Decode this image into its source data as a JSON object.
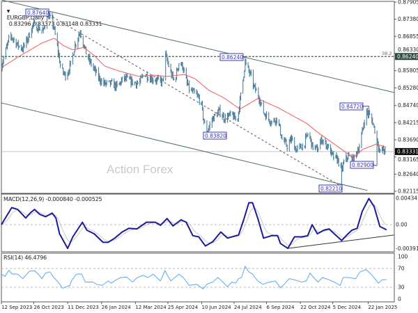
{
  "header": {
    "collapse_icon": "triangle-down-icon",
    "symbol": "EURGBP,Daily",
    "ohlc": "0.83296 0.83373 0.83148 0.83331"
  },
  "watermark": "Action Forex",
  "colors": {
    "bars": "#4f7f9b",
    "ma": "#f05a5a",
    "macd": "#1a1a9c",
    "signal": "#c8c8c8",
    "rsi": "#5aa8f0",
    "annotation": "#3a3ac0",
    "channel": "#4f6f6a"
  },
  "chart_data": [
    {
      "type": "ohlc",
      "panel": "price",
      "ylim": [
        0.82115,
        0.87905
      ],
      "y_ticks": [
        "0.87905",
        "0.87380",
        "0.86855",
        "0.86330",
        "0.85805",
        "0.85280",
        "0.84740",
        "0.84215",
        "0.83690",
        "0.83165",
        "0.82640",
        "0.82115"
      ],
      "x_ticks": [
        "12 Sep 2023",
        "26 Oct 2023",
        "11 Dec 2023",
        "26 Jan 2024",
        "12 Mar 2024",
        "25 Apr 2024",
        "10 Jun 2024",
        "24 Jul 2024",
        "6 Sep 2024",
        "22 Oct 2024",
        "5 Dec 2024",
        "22 Jan 2025"
      ],
      "last_price": "0.83331",
      "close_path": [
        [
          "2023-09-12",
          0.8595
        ],
        [
          "2023-09-24",
          0.869
        ],
        [
          "2023-10-04",
          0.8659
        ],
        [
          "2023-10-11",
          0.8648
        ],
        [
          "2023-10-18",
          0.868
        ],
        [
          "2023-10-25",
          0.8722
        ],
        [
          "2023-11-01",
          0.8712
        ],
        [
          "2023-11-08",
          0.8701
        ],
        [
          "2023-11-13",
          0.8754
        ],
        [
          "2023-11-20",
          0.8733
        ],
        [
          "2023-11-25",
          0.868
        ],
        [
          "2023-12-02",
          0.8584
        ],
        [
          "2023-12-09",
          0.8563
        ],
        [
          "2023-12-16",
          0.8605
        ],
        [
          "2023-12-21",
          0.8659
        ],
        [
          "2023-12-28",
          0.8701
        ],
        [
          "2024-01-02",
          0.8659
        ],
        [
          "2024-01-06",
          0.8627
        ],
        [
          "2024-01-11",
          0.8605
        ],
        [
          "2024-01-21",
          0.8563
        ],
        [
          "2024-01-28",
          0.8541
        ],
        [
          "2024-02-08",
          0.8541
        ],
        [
          "2024-02-16",
          0.8531
        ],
        [
          "2024-02-25",
          0.8558
        ],
        [
          "2024-03-08",
          0.8546
        ],
        [
          "2024-03-17",
          0.8541
        ],
        [
          "2024-03-24",
          0.8573
        ],
        [
          "2024-03-31",
          0.8558
        ],
        [
          "2024-04-10",
          0.8552
        ],
        [
          "2024-04-18",
          0.8546
        ],
        [
          "2024-04-22",
          0.8627
        ],
        [
          "2024-04-29",
          0.8573
        ],
        [
          "2024-05-04",
          0.8546
        ],
        [
          "2024-05-10",
          0.8605
        ],
        [
          "2024-05-15",
          0.8595
        ],
        [
          "2024-05-21",
          0.8541
        ],
        [
          "2024-05-25",
          0.852
        ],
        [
          "2024-06-01",
          0.851
        ],
        [
          "2024-06-09",
          0.8488
        ],
        [
          "2024-06-13",
          0.8424
        ],
        [
          "2024-06-17",
          0.8392
        ],
        [
          "2024-06-25",
          0.8435
        ],
        [
          "2024-07-04",
          0.8456
        ],
        [
          "2024-07-11",
          0.8435
        ],
        [
          "2024-07-21",
          0.8446
        ],
        [
          "2024-07-28",
          0.8424
        ],
        [
          "2024-08-03",
          0.852
        ],
        [
          "2024-08-08",
          0.8605
        ],
        [
          "2024-08-16",
          0.8563
        ],
        [
          "2024-08-20",
          0.8531
        ],
        [
          "2024-08-27",
          0.8499
        ],
        [
          "2024-09-01",
          0.8456
        ],
        [
          "2024-09-08",
          0.8435
        ],
        [
          "2024-09-13",
          0.8424
        ],
        [
          "2024-09-21",
          0.8435
        ],
        [
          "2024-09-27",
          0.8371
        ],
        [
          "2024-10-04",
          0.835
        ],
        [
          "2024-10-10",
          0.8371
        ],
        [
          "2024-10-16",
          0.8339
        ],
        [
          "2024-10-26",
          0.835
        ],
        [
          "2024-11-02",
          0.8392
        ],
        [
          "2024-11-07",
          0.835
        ],
        [
          "2024-11-14",
          0.8339
        ],
        [
          "2024-11-20",
          0.8371
        ],
        [
          "2024-11-28",
          0.835
        ],
        [
          "2024-12-05",
          0.8318
        ],
        [
          "2024-12-12",
          0.8307
        ],
        [
          "2024-12-17",
          0.8275
        ],
        [
          "2024-12-21",
          0.8307
        ],
        [
          "2024-12-26",
          0.8318
        ],
        [
          "2025-01-02",
          0.8307
        ],
        [
          "2025-01-10",
          0.835
        ],
        [
          "2025-01-14",
          0.8392
        ],
        [
          "2025-01-19",
          0.8456
        ],
        [
          "2025-01-23",
          0.8446
        ],
        [
          "2025-01-28",
          0.8424
        ],
        [
          "2025-02-02",
          0.8382
        ],
        [
          "2025-02-07",
          0.8329
        ],
        [
          "2025-02-11",
          0.8339
        ],
        [
          "2025-02-16",
          0.8333
        ]
      ],
      "moving_average": [
        [
          "2023-09-12",
          0.859
        ],
        [
          "2023-10-08",
          0.8627
        ],
        [
          "2023-11-06",
          0.8665
        ],
        [
          "2023-11-23",
          0.868
        ],
        [
          "2023-12-04",
          0.8659
        ],
        [
          "2023-12-18",
          0.8644
        ],
        [
          "2024-01-02",
          0.8652
        ],
        [
          "2024-01-16",
          0.8627
        ],
        [
          "2024-01-30",
          0.8595
        ],
        [
          "2024-02-18",
          0.858
        ],
        [
          "2024-03-17",
          0.8563
        ],
        [
          "2024-04-05",
          0.8567
        ],
        [
          "2024-04-24",
          0.8563
        ],
        [
          "2024-05-18",
          0.8569
        ],
        [
          "2024-06-01",
          0.8556
        ],
        [
          "2024-06-20",
          0.852
        ],
        [
          "2024-07-09",
          0.8499
        ],
        [
          "2024-08-01",
          0.8463
        ],
        [
          "2024-08-25",
          0.8495
        ],
        [
          "2024-09-22",
          0.8467
        ],
        [
          "2024-10-30",
          0.842
        ],
        [
          "2024-11-18",
          0.8386
        ],
        [
          "2024-12-07",
          0.8356
        ],
        [
          "2025-01-02",
          0.8314
        ],
        [
          "2025-01-14",
          0.8339
        ],
        [
          "2025-02-02",
          0.8356
        ],
        [
          "2025-02-16",
          0.8346
        ]
      ],
      "annotations": [
        {
          "text": "0.87640",
          "date": "2023-11-13",
          "price": 0.8764,
          "kind": "high"
        },
        {
          "text": "0.86240",
          "date": "2024-08-08",
          "price": 0.8624,
          "kind": "high"
        },
        {
          "text": "0.83820",
          "date": "2024-06-17",
          "price": 0.8382,
          "kind": "low"
        },
        {
          "text": "0.82210",
          "date": "2024-12-17",
          "price": 0.8221,
          "kind": "low"
        },
        {
          "text": "0.84720",
          "date": "2025-01-23",
          "price": 0.8472,
          "kind": "high"
        },
        {
          "text": "0.82900",
          "date": "2025-02-03",
          "price": 0.829,
          "kind": "low"
        }
      ],
      "fib_level": {
        "label": "38.2",
        "price": "0.86240"
      },
      "trendlines": [
        {
          "style": "solid",
          "from": [
            "2023-09-12",
            0.8797
          ],
          "to": [
            "2025-02-26",
            0.8514
          ]
        },
        {
          "style": "solid",
          "from": [
            "2023-09-12",
            0.8482
          ],
          "to": [
            "2025-01-21",
            0.8214
          ]
        },
        {
          "style": "dashed",
          "from": [
            "2023-11-01",
            0.8771
          ],
          "to": [
            "2024-12-17",
            0.8226
          ]
        }
      ]
    },
    {
      "type": "line",
      "panel": "macd",
      "title": "MACD(12,26,9) -0.000840 -0.000525",
      "ylim": [
        -0.003916,
        0.004341
      ],
      "y_ticks": [
        "0.004341",
        "0.00",
        "-0.003916"
      ],
      "macd": [
        [
          "2023-09-12",
          0.0
        ],
        [
          "2023-09-26",
          0.0028
        ],
        [
          "2023-10-04",
          0.0025
        ],
        [
          "2023-10-15",
          0.0011
        ],
        [
          "2023-10-21",
          0.0019
        ],
        [
          "2023-10-27",
          0.0025
        ],
        [
          "2023-11-03",
          0.0017
        ],
        [
          "2023-11-11",
          0.0013
        ],
        [
          "2023-11-20",
          0.0019
        ],
        [
          "2023-11-25",
          0.0011
        ],
        [
          "2023-11-30",
          -0.0015
        ],
        [
          "2023-12-11",
          -0.0039
        ],
        [
          "2023-12-18",
          -0.002
        ],
        [
          "2023-12-31",
          0.0004
        ],
        [
          "2024-01-06",
          -0.0009
        ],
        [
          "2024-01-16",
          -0.0015
        ],
        [
          "2024-01-28",
          -0.0029
        ],
        [
          "2024-02-04",
          -0.0029
        ],
        [
          "2024-02-13",
          -0.0022
        ],
        [
          "2024-02-23",
          -0.0012
        ],
        [
          "2024-03-03",
          -0.0006
        ],
        [
          "2024-03-14",
          -0.0007
        ],
        [
          "2024-03-27",
          0.0004
        ],
        [
          "2024-04-08",
          0.0004
        ],
        [
          "2024-04-15",
          -0.0001
        ],
        [
          "2024-04-24",
          0.001
        ],
        [
          "2024-05-02",
          -0.0002
        ],
        [
          "2024-05-13",
          0.0008
        ],
        [
          "2024-05-20",
          0.0004
        ],
        [
          "2024-05-29",
          -0.0018
        ],
        [
          "2024-06-06",
          -0.002
        ],
        [
          "2024-06-15",
          -0.0035
        ],
        [
          "2024-06-25",
          -0.0028
        ],
        [
          "2024-07-06",
          -0.0012
        ],
        [
          "2024-07-15",
          -0.0022
        ],
        [
          "2024-07-30",
          -0.0017
        ],
        [
          "2024-08-06",
          0.0008
        ],
        [
          "2024-08-13",
          0.0036
        ],
        [
          "2024-08-18",
          0.0036
        ],
        [
          "2024-08-25",
          0.0011
        ],
        [
          "2024-09-02",
          -0.0022
        ],
        [
          "2024-09-13",
          -0.0018
        ],
        [
          "2024-09-21",
          -0.0018
        ],
        [
          "2024-09-25",
          -0.0031
        ],
        [
          "2024-10-05",
          -0.0039
        ],
        [
          "2024-10-14",
          -0.002
        ],
        [
          "2024-10-24",
          -0.002
        ],
        [
          "2024-11-01",
          -0.0018
        ],
        [
          "2024-11-07",
          0.0
        ],
        [
          "2024-11-14",
          -0.0015
        ],
        [
          "2024-11-23",
          -0.0009
        ],
        [
          "2024-11-30",
          -0.0007
        ],
        [
          "2024-12-07",
          -0.0015
        ],
        [
          "2024-12-17",
          -0.0026
        ],
        [
          "2024-12-24",
          -0.0017
        ],
        [
          "2024-12-31",
          -0.0009
        ],
        [
          "2025-01-07",
          -0.0006
        ],
        [
          "2025-01-14",
          0.0022
        ],
        [
          "2025-01-23",
          0.0043
        ],
        [
          "2025-01-30",
          0.003
        ],
        [
          "2025-02-07",
          -0.0003
        ],
        [
          "2025-02-16",
          -0.00084
        ]
      ],
      "trendline": {
        "from": [
          "2024-10-05",
          -0.0039
        ],
        "to": [
          "2025-02-26",
          -0.0017
        ]
      }
    },
    {
      "type": "line",
      "panel": "rsi",
      "title": "RSI(14) 46.4796",
      "ylim": [
        0,
        100
      ],
      "y_ticks": [
        "100",
        "70",
        "30",
        "0"
      ],
      "levels": [
        70,
        30
      ],
      "rsi": [
        [
          "2023-09-12",
          58.0
        ],
        [
          "2023-09-17",
          53.1
        ],
        [
          "2023-09-22",
          66.2
        ],
        [
          "2023-09-27",
          58.0
        ],
        [
          "2023-10-04",
          58.0
        ],
        [
          "2023-10-11",
          48.3
        ],
        [
          "2023-10-20",
          64.2
        ],
        [
          "2023-10-27",
          65.2
        ],
        [
          "2023-11-01",
          58.0
        ],
        [
          "2023-11-06",
          48.3
        ],
        [
          "2023-11-11",
          60.4
        ],
        [
          "2023-11-17",
          62.8
        ],
        [
          "2023-11-22",
          50.7
        ],
        [
          "2023-11-28",
          41.1
        ],
        [
          "2023-12-04",
          28.1
        ],
        [
          "2023-12-14",
          33.9
        ],
        [
          "2023-12-16",
          43.5
        ],
        [
          "2023-12-23",
          58.0
        ],
        [
          "2023-12-30",
          58.0
        ],
        [
          "2024-01-04",
          41.1
        ],
        [
          "2024-01-14",
          41.1
        ],
        [
          "2024-01-19",
          36.3
        ],
        [
          "2024-01-27",
          33.9
        ],
        [
          "2024-02-04",
          43.5
        ],
        [
          "2024-02-08",
          38.7
        ],
        [
          "2024-02-15",
          45.9
        ],
        [
          "2024-02-21",
          50.7
        ],
        [
          "2024-02-29",
          51.7
        ],
        [
          "2024-03-08",
          41.1
        ],
        [
          "2024-03-14",
          49.8
        ],
        [
          "2024-03-22",
          55.5
        ],
        [
          "2024-03-29",
          50.7
        ],
        [
          "2024-04-05",
          58.0
        ],
        [
          "2024-04-15",
          43.5
        ],
        [
          "2024-04-21",
          65.2
        ],
        [
          "2024-04-29",
          43.5
        ],
        [
          "2024-05-10",
          58.0
        ],
        [
          "2024-05-16",
          50.7
        ],
        [
          "2024-05-24",
          33.9
        ],
        [
          "2024-06-03",
          36.3
        ],
        [
          "2024-06-12",
          26.6
        ],
        [
          "2024-06-17",
          36.3
        ],
        [
          "2024-06-25",
          41.1
        ],
        [
          "2024-07-02",
          50.7
        ],
        [
          "2024-07-07",
          43.5
        ],
        [
          "2024-07-15",
          31.4
        ],
        [
          "2024-07-21",
          41.1
        ],
        [
          "2024-07-26",
          38.7
        ],
        [
          "2024-07-30",
          48.3
        ],
        [
          "2024-08-03",
          50.7
        ],
        [
          "2024-08-08",
          74.8
        ],
        [
          "2024-08-13",
          62.8
        ],
        [
          "2024-08-18",
          58.0
        ],
        [
          "2024-08-25",
          43.5
        ],
        [
          "2024-09-01",
          36.3
        ],
        [
          "2024-09-10",
          41.1
        ],
        [
          "2024-09-18",
          43.5
        ],
        [
          "2024-09-25",
          29.0
        ],
        [
          "2024-09-30",
          36.3
        ],
        [
          "2024-10-07",
          48.3
        ],
        [
          "2024-10-14",
          45.9
        ],
        [
          "2024-10-24",
          41.1
        ],
        [
          "2024-10-30",
          43.5
        ],
        [
          "2024-11-04",
          60.4
        ],
        [
          "2024-11-09",
          50.7
        ],
        [
          "2024-11-15",
          41.1
        ],
        [
          "2024-11-21",
          50.7
        ],
        [
          "2024-11-30",
          45.9
        ],
        [
          "2024-12-07",
          41.1
        ],
        [
          "2024-12-15",
          33.9
        ],
        [
          "2024-12-19",
          50.7
        ],
        [
          "2024-12-26",
          50.7
        ],
        [
          "2025-01-05",
          48.3
        ],
        [
          "2025-01-11",
          62.8
        ],
        [
          "2025-01-19",
          67.6
        ],
        [
          "2025-01-26",
          58.0
        ],
        [
          "2025-02-05",
          38.7
        ],
        [
          "2025-02-10",
          45.9
        ],
        [
          "2025-02-16",
          46.48
        ]
      ]
    }
  ]
}
